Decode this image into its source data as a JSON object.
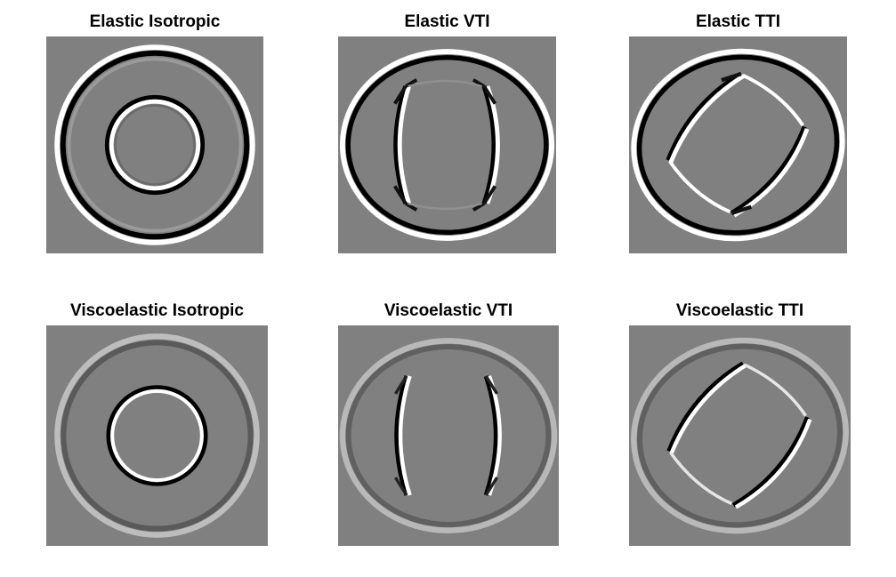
{
  "figure": {
    "panels": [
      {
        "title": "Elastic Isotropic",
        "background": "#808080",
        "kind": "isotropic",
        "attenuated": false
      },
      {
        "title": "Elastic VTI",
        "background": "#808080",
        "kind": "vti",
        "attenuated": false
      },
      {
        "title": "Elastic TTI",
        "background": "#808080",
        "kind": "tti",
        "attenuated": false
      },
      {
        "title": "Viscoelastic Isotropic",
        "background": "#808080",
        "kind": "isotropic",
        "attenuated": true
      },
      {
        "title": "Viscoelastic VTI",
        "background": "#808080",
        "kind": "vti",
        "attenuated": true
      },
      {
        "title": "Viscoelastic TTI",
        "background": "#808080",
        "kind": "tti",
        "attenuated": true
      }
    ]
  }
}
